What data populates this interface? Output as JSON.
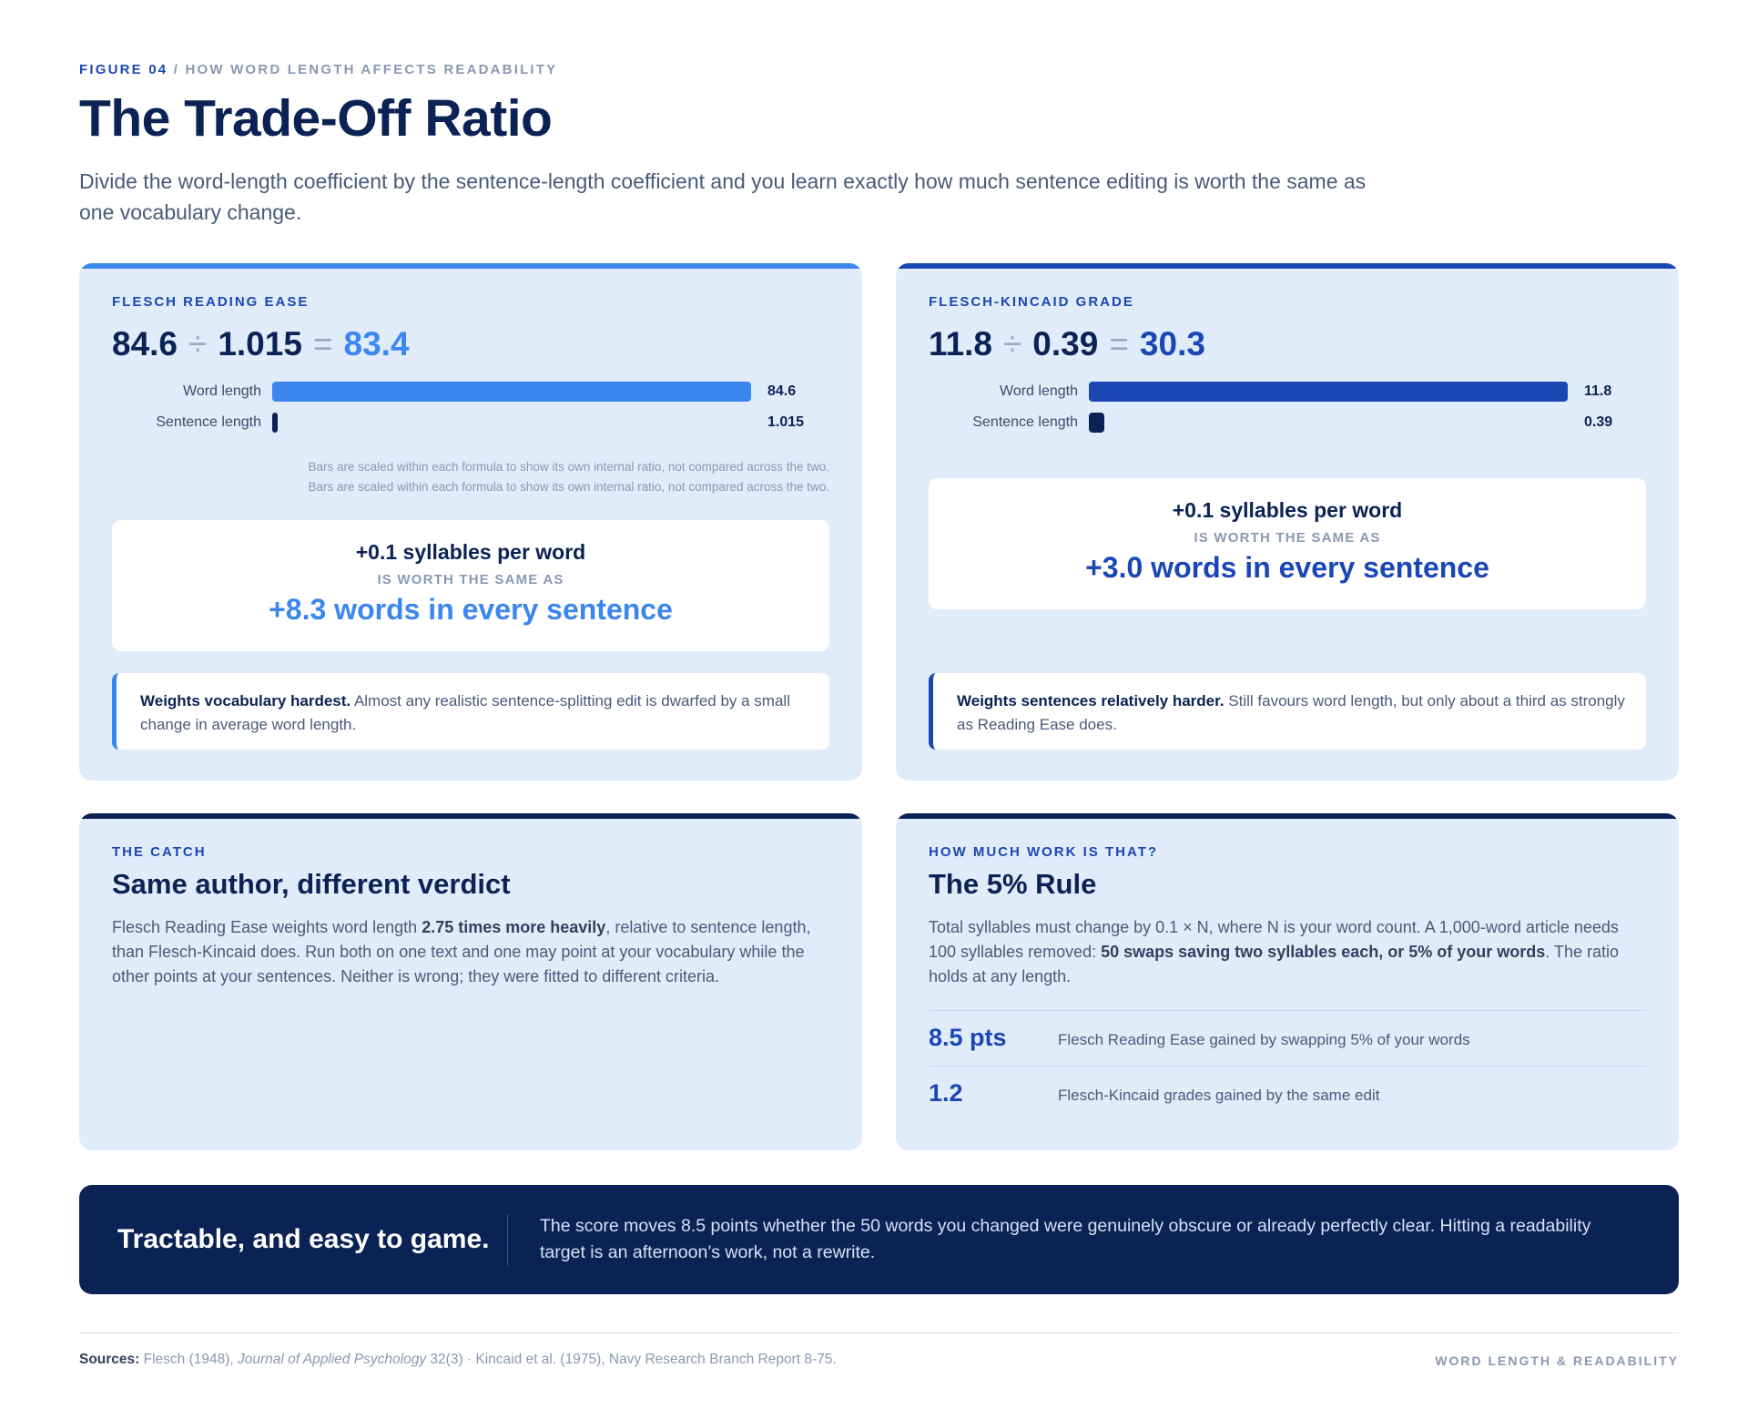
{
  "header": {
    "figure_label": "FIGURE 04",
    "separator": "/",
    "kicker": "HOW WORD LENGTH AFFECTS READABILITY",
    "title": "The Trade-Off Ratio",
    "subtitle": "Divide the word-length coefficient by the sentence-length coefficient and you learn exactly how much sentence editing is worth the same as one vocabulary change."
  },
  "colors": {
    "accent_light": "#3c86ef",
    "accent_dark": "#1b47b5",
    "navy": "#0b2254",
    "card_bg": "#e1ecfa"
  },
  "chart_data": [
    {
      "type": "bar",
      "orientation": "horizontal",
      "title": "FLESCH READING EASE",
      "equation": {
        "a": "84.6",
        "op1": "÷",
        "b": "1.015",
        "op2": "=",
        "result": "83.4"
      },
      "categories": [
        "Word length",
        "Sentence length"
      ],
      "values": [
        84.6,
        1.015
      ],
      "value_labels": [
        "84.6",
        "1.015"
      ],
      "note": [
        "Bars are scaled within each formula to show its own internal ratio, not compared across the two.",
        "Bars are scaled within each formula to show its own internal ratio, not compared across the two."
      ],
      "equivalence": {
        "top": "+0.1 syllables per word",
        "middle": "IS WORTH THE SAME AS",
        "big": "+8.3 words in every sentence"
      },
      "callout": {
        "bold": "Weights vocabulary hardest.",
        "text": " Almost any realistic sentence-splitting edit is dwarfed by a small change in average word length."
      }
    },
    {
      "type": "bar",
      "orientation": "horizontal",
      "title": "FLESCH-KINCAID GRADE",
      "equation": {
        "a": "11.8",
        "op1": "÷",
        "b": "0.39",
        "op2": "=",
        "result": "30.3"
      },
      "categories": [
        "Word length",
        "Sentence length"
      ],
      "values": [
        11.8,
        0.39
      ],
      "value_labels": [
        "11.8",
        "0.39"
      ],
      "equivalence": {
        "top": "+0.1 syllables per word",
        "middle": "IS WORTH THE SAME AS",
        "big": "+3.0 words in every sentence"
      },
      "callout": {
        "bold": "Weights sentences relatively harder.",
        "text": " Still favours word length, but only about a third as strongly as Reading Ease does."
      }
    }
  ],
  "catch": {
    "label": "THE CATCH",
    "heading": "Same author, different verdict",
    "body_1": "Flesch Reading Ease weights word length ",
    "body_bold": "2.75 times more heavily",
    "body_2": ", relative to sentence length, than Flesch-Kincaid does. Run both on one text and one may point at your vocabulary while the other points at your sentences. Neither is wrong; they were fitted to different criteria."
  },
  "rule": {
    "label": "HOW MUCH WORK IS THAT?",
    "heading": "The 5% Rule",
    "body_1": "Total syllables must change by 0.1 × N, where N is your word count. A 1,000-word article needs 100 syllables removed: ",
    "body_bold": "50 swaps saving two syllables each, or 5% of your words",
    "body_2": ". The ratio holds at any length.",
    "metrics": [
      {
        "value": "8.5 pts",
        "desc": "Flesch Reading Ease gained by swapping 5% of your words"
      },
      {
        "value": "1.2",
        "desc": "Flesch-Kincaid grades gained by the same edit"
      }
    ]
  },
  "banner": {
    "heading": "Tractable, and easy to game.",
    "text": "The score moves 8.5 points whether the 50 words you changed were genuinely obscure or already perfectly clear. Hitting a readability target is an afternoon’s work, not a rewrite."
  },
  "footer": {
    "sources_label": "Sources:",
    "source_1": " Flesch (1948), ",
    "source_1_journal": "Journal of Applied Psychology",
    "source_1_rest": " 32(3) · Kincaid et al. (1975), Navy Research Branch Report 8-75.",
    "right": "WORD LENGTH & READABILITY"
  }
}
